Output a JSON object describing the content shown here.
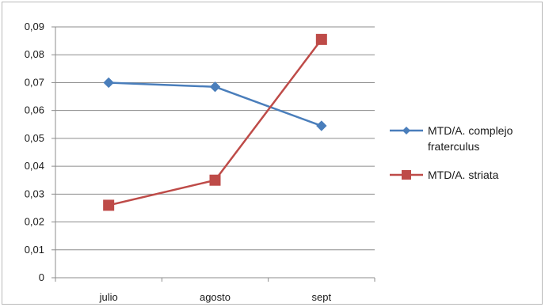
{
  "chart_data": {
    "type": "line",
    "categories": [
      "julio",
      "agosto",
      "sept"
    ],
    "ylim": [
      0,
      0.09
    ],
    "yticks": [
      "0",
      "0,01",
      "0,02",
      "0,03",
      "0,04",
      "0,05",
      "0,06",
      "0,07",
      "0,08",
      "0,09"
    ],
    "grid": true,
    "legend_position": "right",
    "series": [
      {
        "name_lines": [
          "MTD/A. complejo",
          "fraterculus"
        ],
        "values": [
          0.07,
          0.0685,
          0.0545
        ],
        "color": "#4a7ebb",
        "marker": "diamond"
      },
      {
        "name_lines": [
          "MTD/A. striata"
        ],
        "values": [
          0.026,
          0.035,
          0.0855
        ],
        "color": "#be4b48",
        "marker": "square"
      }
    ]
  }
}
